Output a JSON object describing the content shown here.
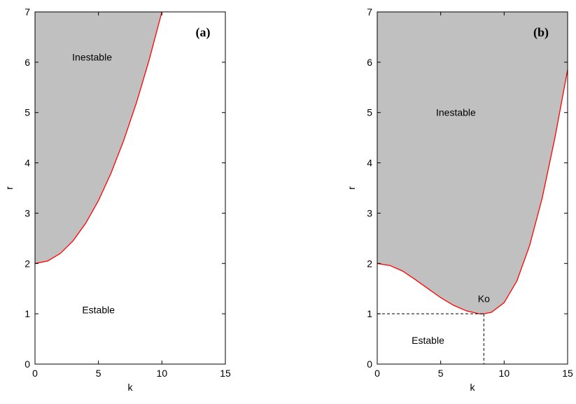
{
  "chart_data": [
    {
      "type": "area",
      "panel_label": "(a)",
      "xlabel": "k",
      "ylabel": "r",
      "xlim": [
        0,
        15
      ],
      "ylim": [
        0,
        7
      ],
      "xticks": [
        0,
        5,
        10,
        15
      ],
      "yticks": [
        0,
        1,
        2,
        3,
        4,
        5,
        6,
        7
      ],
      "grid": false,
      "fill_color": "#c0c0c0",
      "curve_color": "#ff0000",
      "regions": [
        {
          "label": "Inestable",
          "x": 4.5,
          "y": 6.1
        },
        {
          "label": "Estable",
          "x": 5,
          "y": 1.08
        }
      ],
      "series": [
        {
          "x": [
            0,
            1,
            2,
            3,
            4,
            5,
            6,
            7,
            8,
            9,
            10
          ],
          "values": [
            2.0,
            2.05,
            2.2,
            2.45,
            2.8,
            3.25,
            3.8,
            4.45,
            5.2,
            6.05,
            7.0
          ]
        }
      ]
    },
    {
      "type": "area",
      "panel_label": "(b)",
      "xlabel": "k",
      "ylabel": "r",
      "xlim": [
        0,
        15
      ],
      "ylim": [
        0,
        7
      ],
      "xticks": [
        0,
        5,
        10,
        15
      ],
      "yticks": [
        0,
        1,
        2,
        3,
        4,
        5,
        6,
        7
      ],
      "grid": false,
      "fill_color": "#c0c0c0",
      "curve_color": "#ff0000",
      "regions": [
        {
          "label": "Inestable",
          "x": 6.2,
          "y": 5.0
        },
        {
          "label": "Estable",
          "x": 4.0,
          "y": 0.47
        }
      ],
      "annotations": [
        {
          "label": "Ko",
          "x": 8.4,
          "y": 1.3
        }
      ],
      "reference_point": {
        "x": 8.4,
        "y": 1.0
      },
      "series": [
        {
          "x": [
            0,
            1,
            2,
            3,
            4,
            5,
            6,
            7,
            8,
            8.4,
            9,
            10,
            11,
            12,
            13,
            14,
            15
          ],
          "values": [
            2.0,
            1.96,
            1.85,
            1.68,
            1.5,
            1.32,
            1.17,
            1.06,
            1.0,
            1.0,
            1.03,
            1.22,
            1.65,
            2.35,
            3.3,
            4.5,
            5.85
          ]
        }
      ]
    }
  ]
}
